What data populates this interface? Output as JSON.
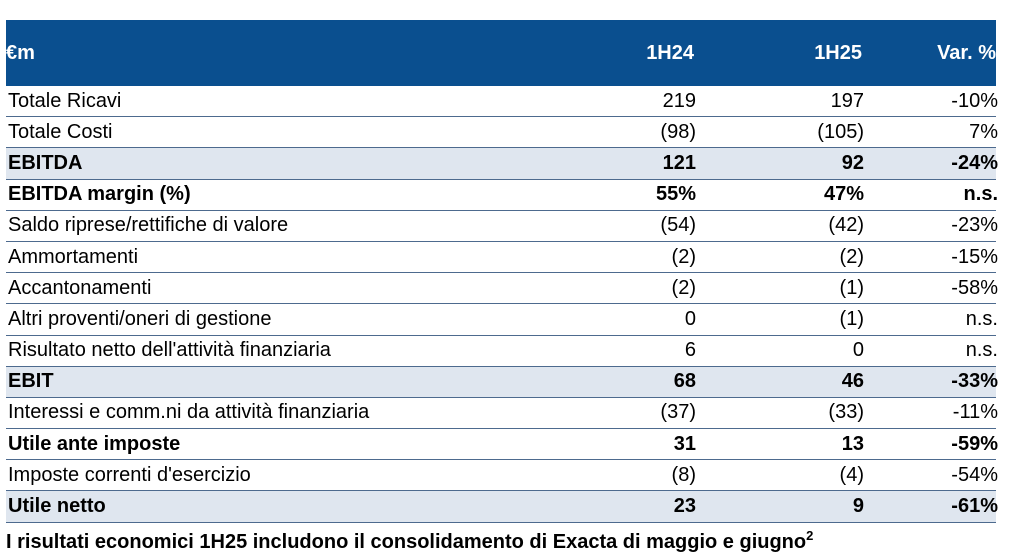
{
  "header": {
    "unit": "€m",
    "col1": "1H24",
    "col2": "1H25",
    "col3": "Var. %"
  },
  "rows": [
    {
      "label": "Totale Ricavi",
      "v1": "219",
      "v2": "197",
      "var": "-10%",
      "style": "normal"
    },
    {
      "label": "Totale Costi",
      "v1": "(98)",
      "v2": "(105)",
      "var": "7%",
      "style": "normal"
    },
    {
      "label": "EBITDA",
      "v1": "121",
      "v2": "92",
      "var": "-24%",
      "style": "hl"
    },
    {
      "label": "EBITDA margin (%)",
      "v1": "55%",
      "v2": "47%",
      "var": "n.s.",
      "style": "bold"
    },
    {
      "label": "Saldo riprese/rettifiche di valore",
      "v1": "(54)",
      "v2": "(42)",
      "var": "-23%",
      "style": "normal"
    },
    {
      "label": "Ammortamenti",
      "v1": "(2)",
      "v2": "(2)",
      "var": "-15%",
      "style": "normal"
    },
    {
      "label": "Accantonamenti",
      "v1": "(2)",
      "v2": "(1)",
      "var": "-58%",
      "style": "normal"
    },
    {
      "label": "Altri proventi/oneri di gestione",
      "v1": "0",
      "v2": "(1)",
      "var": "n.s.",
      "style": "normal"
    },
    {
      "label": "Risultato netto dell'attività finanziaria",
      "v1": "6",
      "v2": "0",
      "var": "n.s.",
      "style": "normal"
    },
    {
      "label": "EBIT",
      "v1": "68",
      "v2": "46",
      "var": "-33%",
      "style": "hl"
    },
    {
      "label": "Interessi e comm.ni da attività finanziaria",
      "v1": "(37)",
      "v2": "(33)",
      "var": "-11%",
      "style": "normal"
    },
    {
      "label": "Utile ante imposte",
      "v1": "31",
      "v2": "13",
      "var": "-59%",
      "style": "bold"
    },
    {
      "label": "Imposte correnti d'esercizio",
      "v1": "(8)",
      "v2": "(4)",
      "var": "-54%",
      "style": "normal"
    },
    {
      "label": "Utile netto",
      "v1": "23",
      "v2": "9",
      "var": "-61%",
      "style": "hl"
    }
  ],
  "footnote": {
    "text": "I risultati economici 1H25 includono il consolidamento di Exacta di maggio e giugno",
    "sup": "2"
  },
  "colors": {
    "header_bg": "#0a4f8f",
    "highlight_bg": "#dfe6ef",
    "rule": "#4d6a8e"
  }
}
